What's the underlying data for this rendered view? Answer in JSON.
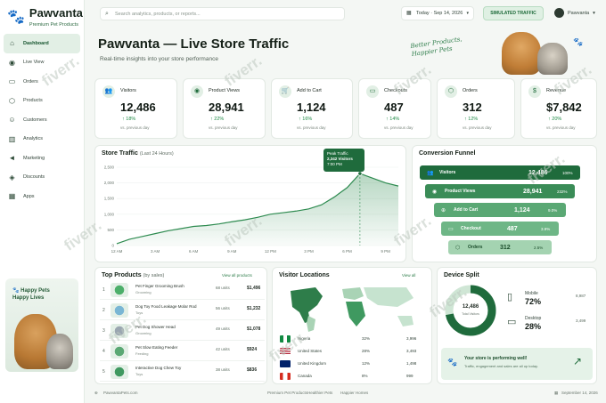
{
  "brand": {
    "name": "Pawvanta",
    "subtitle": "Premium Pet Products"
  },
  "nav": [
    {
      "label": "Dashboard",
      "icon": "home-icon",
      "glyph": "⌂",
      "active": true
    },
    {
      "label": "Live View",
      "icon": "live-icon",
      "glyph": "◉"
    },
    {
      "label": "Orders",
      "icon": "orders-icon",
      "glyph": "▭"
    },
    {
      "label": "Products",
      "icon": "products-icon",
      "glyph": "⬡"
    },
    {
      "label": "Customers",
      "icon": "customers-icon",
      "glyph": "☺"
    },
    {
      "label": "Analytics",
      "icon": "analytics-icon",
      "glyph": "▥"
    },
    {
      "label": "Marketing",
      "icon": "megaphone-icon",
      "glyph": "◄"
    },
    {
      "label": "Discounts",
      "icon": "tag-icon",
      "glyph": "◈"
    },
    {
      "label": "Apps",
      "icon": "apps-icon",
      "glyph": "▦"
    }
  ],
  "promo": {
    "line1": "Happy Pets",
    "line2": "Happy Lives"
  },
  "topbar": {
    "search_placeholder": "Search analytics, products, or reports...",
    "date": "Today · Sep 14, 2026",
    "simulated": "SIMULATED TRAFFIC",
    "user": "Pawvanta"
  },
  "page": {
    "title": "Pawvanta — Live Store Traffic",
    "subtitle": "Real-time insights into your store performance",
    "hero_line1": "Better Products,",
    "hero_line2": "Happier Pets"
  },
  "kpis": [
    {
      "label": "Visitors",
      "value": "12,486",
      "change": "↑ 18%",
      "vs": "vs. previous day",
      "icon": "users-icon",
      "glyph": "👥"
    },
    {
      "label": "Product Views",
      "value": "28,941",
      "change": "↑ 22%",
      "vs": "vs. previous day",
      "icon": "eye-icon",
      "glyph": "◉"
    },
    {
      "label": "Add to Cart",
      "value": "1,124",
      "change": "↑ 16%",
      "vs": "vs. previous day",
      "icon": "cart-icon",
      "glyph": "🛒"
    },
    {
      "label": "Checkouts",
      "value": "487",
      "change": "↑ 14%",
      "vs": "vs. previous day",
      "icon": "card-icon",
      "glyph": "▭"
    },
    {
      "label": "Orders",
      "value": "312",
      "change": "↑ 12%",
      "vs": "vs. previous day",
      "icon": "box-icon",
      "glyph": "⬡"
    },
    {
      "label": "Revenue",
      "value": "$7,842",
      "change": "↑ 20%",
      "vs": "vs. previous day",
      "icon": "dollar-icon",
      "glyph": "$"
    }
  ],
  "traffic": {
    "title": "Store Traffic",
    "title_suffix": "(Last 24 Hours)",
    "tooltip_label": "Peak Traffic",
    "tooltip_value": "2,342 Visitors",
    "tooltip_time": "7:00 PM"
  },
  "chart_data": {
    "type": "area",
    "x": [
      "12 AM",
      "1 AM",
      "2 AM",
      "3 AM",
      "4 AM",
      "5 AM",
      "6 AM",
      "7 AM",
      "8 AM",
      "9 AM",
      "10 AM",
      "11 AM",
      "12 PM",
      "1 PM",
      "2 PM",
      "3 PM",
      "4 PM",
      "5 PM",
      "6 PM",
      "7 PM",
      "8 PM",
      "9 PM",
      "10 PM"
    ],
    "xticks": [
      "12 AM",
      "3 AM",
      "6 AM",
      "9 AM",
      "12 PM",
      "3 PM",
      "6 PM",
      "9 PM"
    ],
    "values": [
      60,
      200,
      290,
      380,
      470,
      540,
      610,
      640,
      690,
      760,
      820,
      900,
      1000,
      1050,
      1100,
      1170,
      1300,
      1550,
      1850,
      2300,
      2150,
      2000,
      1900
    ],
    "ylim": [
      0,
      2500
    ],
    "yticks": [
      0,
      500,
      1000,
      1500,
      2000,
      2500
    ],
    "ytick_labels": [
      "0",
      "500",
      "1,000",
      "1,500",
      "2,000",
      "2,500"
    ],
    "color": "#2e8b50"
  },
  "funnel": {
    "title": "Conversion Funnel",
    "rows": [
      {
        "label": "Visitors",
        "value": "12,486",
        "pct": "100%"
      },
      {
        "label": "Product Views",
        "value": "28,941",
        "pct": "232%"
      },
      {
        "label": "Add to Cart",
        "value": "1,124",
        "pct": "9.0%"
      },
      {
        "label": "Checkout",
        "value": "487",
        "pct": "3.9%"
      },
      {
        "label": "Orders",
        "value": "312",
        "pct": "2.5%"
      }
    ]
  },
  "products": {
    "title": "Top Products",
    "title_suffix": "(by sales)",
    "view_all": "View all products",
    "rows": [
      {
        "rank": "1",
        "name": "Pet Finger Grooming Brush",
        "cat": "Grooming",
        "units": "68 units",
        "rev": "$1,496"
      },
      {
        "rank": "2",
        "name": "Dog Toy Food Leakage Molar Rod",
        "cat": "Toys",
        "units": "56 units",
        "rev": "$1,232"
      },
      {
        "rank": "3",
        "name": "Pet Dog Shower Head",
        "cat": "Grooming",
        "units": "49 units",
        "rev": "$1,078"
      },
      {
        "rank": "4",
        "name": "Pet Slow Eating Feeder",
        "cat": "Feeding",
        "units": "42 units",
        "rev": "$924"
      },
      {
        "rank": "5",
        "name": "Interactive Dog Chew Toy",
        "cat": "Toys",
        "units": "38 units",
        "rev": "$836"
      }
    ]
  },
  "locations": {
    "title": "Visitor Locations",
    "view_all": "View all",
    "rows": [
      {
        "country": "Nigeria",
        "pct": "32%",
        "count": "3,996",
        "flag": "nigeria"
      },
      {
        "country": "United States",
        "pct": "28%",
        "count": "3,493",
        "flag": "us"
      },
      {
        "country": "United Kingdom",
        "pct": "12%",
        "count": "1,498",
        "flag": "uk"
      },
      {
        "country": "Canada",
        "pct": "8%",
        "count": "999",
        "flag": "canada"
      }
    ]
  },
  "devices": {
    "title": "Device Split",
    "total": "12,486",
    "total_label": "Total Visitors",
    "mobile_share": 0.72,
    "rows": [
      {
        "label": "Mobile",
        "pct": "72%",
        "count": "8,987"
      },
      {
        "label": "Desktop",
        "pct": "28%",
        "count": "3,499"
      }
    ],
    "banner_title": "Your store is performing well!",
    "banner_text": "Traffic, engagement and sales are all up today."
  },
  "footer": {
    "site": "PawvantaPets.com",
    "tagline1": "Premium Pet Products",
    "tagline2": "Healthier Pets",
    "tagline3": "Happier Homes",
    "date": "September 14, 2026"
  },
  "watermark": "fiverr."
}
